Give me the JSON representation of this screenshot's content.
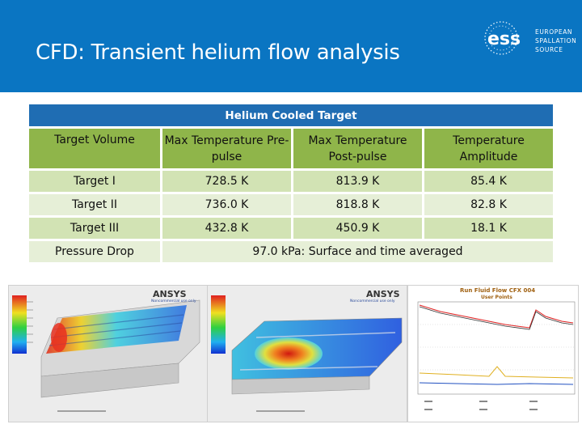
{
  "header": {
    "title": "CFD: Transient helium flow analysis",
    "logo": {
      "mark": "ess",
      "lines": [
        "EUROPEAN",
        "SPALLATION",
        "SOURCE"
      ]
    }
  },
  "table": {
    "caption": "Helium Cooled Target",
    "columns": [
      "Target Volume",
      "Max Temperature Pre-pulse",
      "Max Temperature Post-pulse",
      "Temperature Amplitude"
    ],
    "rows": [
      {
        "name": "Target I",
        "pre": "728.5 K",
        "post": "813.9 K",
        "amp": "85.4 K"
      },
      {
        "name": "Target II",
        "pre": "736.0 K",
        "post": "818.8 K",
        "amp": "82.8 K"
      },
      {
        "name": "Target III",
        "pre": "432.8 K",
        "post": "450.9 K",
        "amp": "18.1 K"
      }
    ],
    "pressure_label": "Pressure Drop",
    "pressure_value": "97.0 kPa: Surface and time averaged"
  },
  "figures": {
    "sim1": {
      "brand": "ANSYS",
      "note": "Noncommercial use only"
    },
    "sim2": {
      "brand": "ANSYS",
      "note": "Noncommercial use only"
    },
    "plot": {
      "title": "Run Fluid Flow CFX 004",
      "subtitle": "User Points"
    }
  },
  "colors": {
    "header_bg": "#0a75c2",
    "caption_bg": "#1f6db3",
    "header_row_bg": "#8fb54a",
    "row_dark": "#d2e3b4",
    "row_light": "#e6efd7"
  }
}
